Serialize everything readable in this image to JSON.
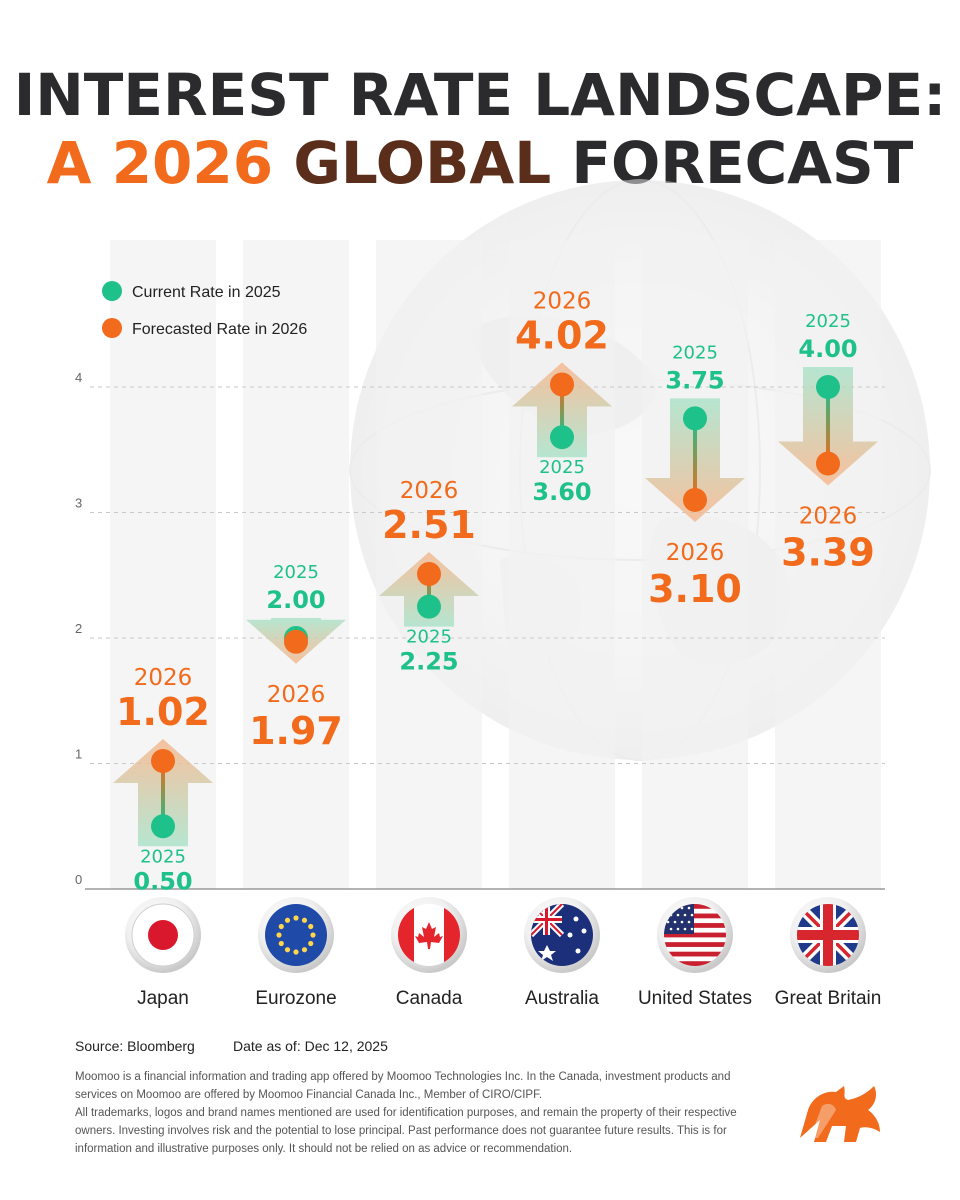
{
  "title": {
    "line1": "INTEREST RATE LANDSCAPE:",
    "line2_a": "A 2026 ",
    "line2_b": "GLOBAL ",
    "line2_c": "FORECAST"
  },
  "legend": {
    "current": "Current Rate in 2025",
    "forecast": "Forecasted Rate in 2026"
  },
  "colors": {
    "current": "#1fc18a",
    "forecast": "#f26a1b",
    "bar": "#f1f1f1",
    "title_dark": "#2b2b2e",
    "title_orange": "#f26a1b"
  },
  "chart_data": {
    "type": "dumbbell",
    "categories": [
      "Japan",
      "Eurozone",
      "Canada",
      "Australia",
      "United States",
      "Great Britain"
    ],
    "series": [
      {
        "name": "Current Rate in 2025",
        "year_label": "2025",
        "values": [
          0.5,
          2.0,
          2.25,
          3.6,
          3.75,
          4.0
        ]
      },
      {
        "name": "Forecasted Rate in 2026",
        "year_label": "2026",
        "values": [
          1.02,
          1.97,
          2.51,
          4.02,
          3.1,
          3.39
        ]
      }
    ],
    "ylim": [
      0,
      4
    ],
    "yticks": [
      "0",
      "1",
      "2",
      "3",
      "4"
    ],
    "grid": true,
    "legend_position": "top-left"
  },
  "countries": [
    {
      "name": "Japan",
      "flag_icon": "japan-flag-icon"
    },
    {
      "name": "Eurozone",
      "flag_icon": "eu-flag-icon"
    },
    {
      "name": "Canada",
      "flag_icon": "canada-flag-icon"
    },
    {
      "name": "Australia",
      "flag_icon": "australia-flag-icon"
    },
    {
      "name": "United States",
      "flag_icon": "us-flag-icon"
    },
    {
      "name": "Great Britain",
      "flag_icon": "uk-flag-icon"
    }
  ],
  "footer": {
    "source": "Source: Bloomberg",
    "as_of": "Date as of: Dec 12, 2025",
    "disclaimer_1": "Moomoo is a financial information and trading app offered by Moomoo Technologies Inc. In the Canada, investment products and services on Moomoo are offered by Moomoo Financial Canada Inc., Member of CIRO/CIPF.",
    "disclaimer_2": "All trademarks, logos and brand names mentioned are used for identification purposes, and remain the property of their respective owners. Investing involves risk and the potential to lose principal. Past performance does not guarantee future results. This is for information and illustrative purposes only. It should not be relied on as advice or recommendation."
  },
  "logo_icon": "moomoo-bull-logo-icon"
}
